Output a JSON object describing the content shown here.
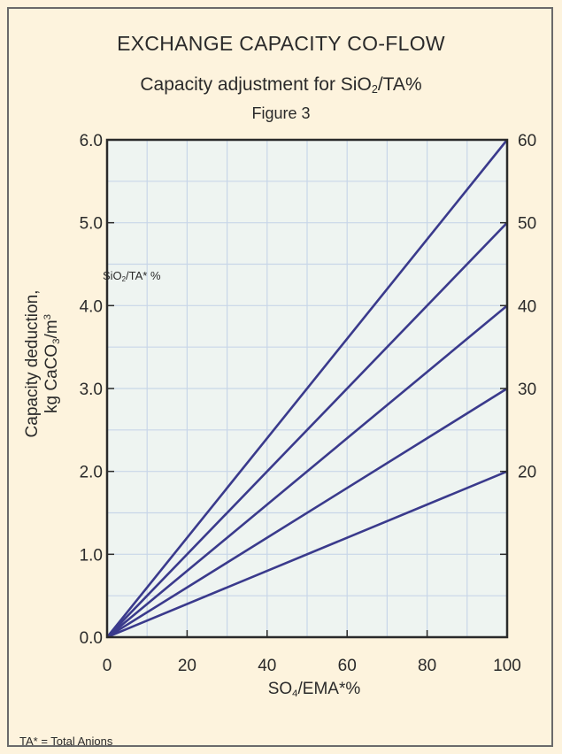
{
  "chart_data": {
    "type": "line",
    "title": "EXCHANGE CAPACITY CO-FLOW",
    "subtitle": {
      "before": "Capacity adjustment for SiO",
      "sub": "2",
      "after": "/TA%"
    },
    "figure_label": "Figure 3",
    "xlabel": {
      "before": "SO",
      "sub": "4",
      "after": "/EMA*%"
    },
    "ylabel": {
      "line1": "Capacity deduction,",
      "line2_before": "kg CaCO",
      "line2_sub": "3",
      "line2_mid": "/m",
      "line2_sup": "3"
    },
    "xlim": [
      0,
      100
    ],
    "ylim": [
      0,
      6
    ],
    "x_ticks": [
      "0",
      "20",
      "40",
      "60",
      "80",
      "100"
    ],
    "y_ticks": [
      "0.0",
      "1.0",
      "2.0",
      "3.0",
      "4.0",
      "5.0",
      "6.0"
    ],
    "right_labels": [
      "60",
      "50",
      "40",
      "30",
      "20"
    ],
    "grid": true,
    "annotation": {
      "before": "SiO",
      "sub": "2",
      "after": "/TA* %"
    },
    "footnote": "TA* = Total Anions",
    "series": [
      {
        "name": "60",
        "x": [
          0,
          100
        ],
        "y": [
          0,
          6.0
        ]
      },
      {
        "name": "50",
        "x": [
          0,
          100
        ],
        "y": [
          0,
          5.0
        ]
      },
      {
        "name": "40",
        "x": [
          0,
          100
        ],
        "y": [
          0,
          4.0
        ]
      },
      {
        "name": "30",
        "x": [
          0,
          100
        ],
        "y": [
          0,
          3.0
        ]
      },
      {
        "name": "20",
        "x": [
          0,
          100
        ],
        "y": [
          0,
          2.0
        ]
      }
    ],
    "colors": {
      "background": "#fdf3dd",
      "plot_background": "#eef4f1",
      "grid": "#c8d6e8",
      "line": "#3a3a8c",
      "axis": "#2a2a2a"
    }
  }
}
